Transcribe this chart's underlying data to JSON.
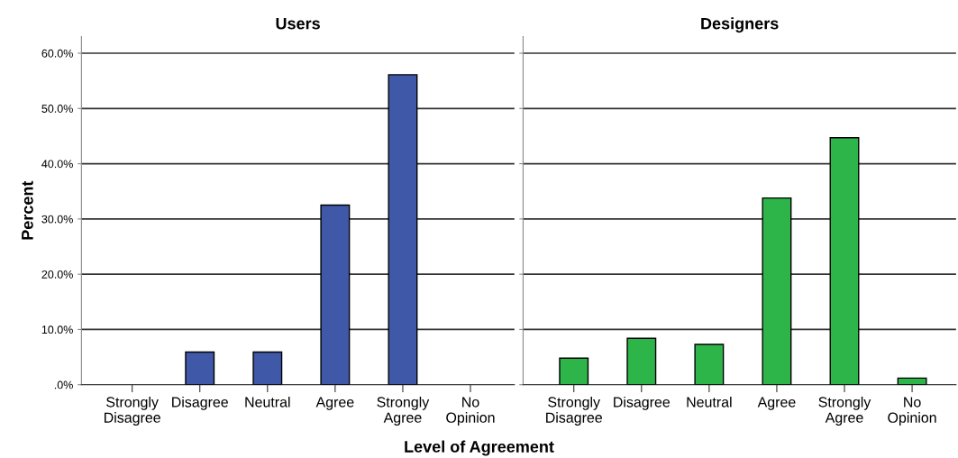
{
  "chart_data": [
    {
      "type": "bar",
      "title": "Users",
      "xlabel": "Level of Agreement",
      "ylabel": "Percent",
      "categories": [
        "Strongly Disagree",
        "Disagree",
        "Neutral",
        "Agree",
        "Strongly Agree",
        "No Opinion"
      ],
      "values": [
        0,
        5.9,
        5.9,
        32.5,
        56.1,
        0
      ],
      "color": "#3f58a8",
      "ylim": [
        0,
        63
      ],
      "yticks": [
        {
          "value": 0,
          "label": ".0%"
        },
        {
          "value": 10,
          "label": "10.0%"
        },
        {
          "value": 20,
          "label": "20.0%"
        },
        {
          "value": 30,
          "label": "30.0%"
        },
        {
          "value": 40,
          "label": "40.0%"
        },
        {
          "value": 50,
          "label": "50.0%"
        },
        {
          "value": 60,
          "label": "60.0%"
        }
      ],
      "grid": "y"
    },
    {
      "type": "bar",
      "title": "Designers",
      "categories": [
        "Strongly Disagree",
        "Disagree",
        "Neutral",
        "Agree",
        "Strongly Agree",
        "No Opinion"
      ],
      "values": [
        4.8,
        8.4,
        7.3,
        33.8,
        44.7,
        1.2
      ],
      "color": "#2db54a",
      "ylim": [
        0,
        63
      ],
      "yticks": [
        0,
        10,
        20,
        30,
        40,
        50,
        60
      ],
      "grid": "y",
      "tick_labels": "x"
    }
  ]
}
